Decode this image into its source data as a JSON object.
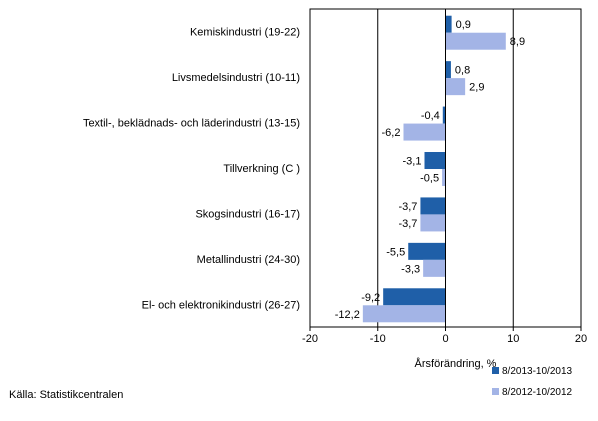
{
  "chart_data": {
    "type": "bar",
    "orientation": "horizontal",
    "categories": [
      "Kemiskindustri (19-22)",
      "Livsmedelsindustri (10-11)",
      "Textil-, beklädnads- och läderindustri (13-15)",
      "Tillverkning (C )",
      "Skogsindustri (16-17)",
      "Metallindustri (24-30)",
      "El- och elektronikindustri (26-27)"
    ],
    "series": [
      {
        "name": "8/2013-10/2013",
        "color": "#1f5fa8",
        "values": [
          0.9,
          0.8,
          -0.4,
          -3.1,
          -3.7,
          -5.5,
          -9.2
        ],
        "labels": [
          "0,9",
          "0,8",
          "-0,4",
          "-3,1",
          "-3,7",
          "-5,5",
          "-9,2"
        ]
      },
      {
        "name": "8/2012-10/2012",
        "color": "#a3b4e6",
        "values": [
          8.9,
          2.9,
          -6.2,
          -0.5,
          -3.7,
          -3.3,
          -12.2
        ],
        "labels": [
          "8,9",
          "2,9",
          "-6,2",
          "-0,5",
          "-3,7",
          "-3,3",
          "-12,2"
        ]
      }
    ],
    "xlim": [
      -20,
      20
    ],
    "xticks": [
      -20,
      -10,
      0,
      10,
      20
    ],
    "xtick_labels": [
      "-20",
      "-10",
      "0",
      "10",
      "20"
    ],
    "xlabel": "Årsförändring, %",
    "title": "",
    "ylabel": "",
    "grid": "vertical lines at -10, 0, 10",
    "legend_position": "bottom-right"
  },
  "source_text": "Källa: Statistikcentralen"
}
